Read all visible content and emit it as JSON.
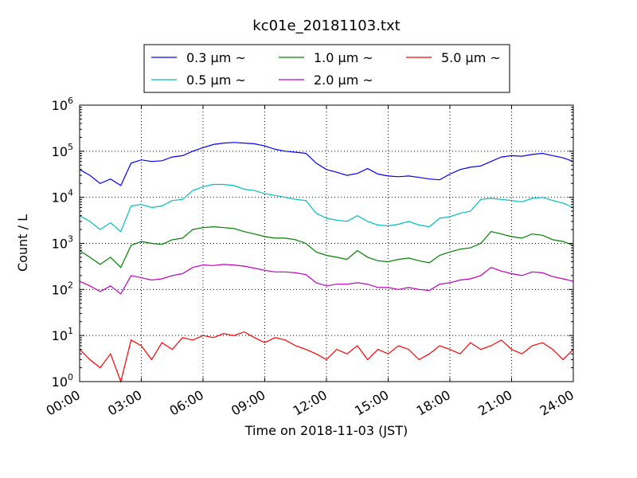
{
  "chart_data": {
    "type": "line",
    "title": "kc01e_20181103.txt",
    "xlabel": "Time on 2018-11-03 (JST)",
    "ylabel": "Count / L",
    "xlim": [
      0,
      24
    ],
    "y_scale": "log",
    "ylim": [
      1,
      1000000
    ],
    "grid": true,
    "legend_position": "top-center",
    "x_ticks": [
      "00:00",
      "03:00",
      "06:00",
      "09:00",
      "12:00",
      "15:00",
      "18:00",
      "21:00",
      "24:00"
    ],
    "y_ticks": [
      {
        "base": "10",
        "exp": "0"
      },
      {
        "base": "10",
        "exp": "1"
      },
      {
        "base": "10",
        "exp": "2"
      },
      {
        "base": "10",
        "exp": "3"
      },
      {
        "base": "10",
        "exp": "4"
      },
      {
        "base": "10",
        "exp": "5"
      },
      {
        "base": "10",
        "exp": "6"
      }
    ],
    "x_hours": [
      0,
      0.5,
      1,
      1.5,
      2,
      2.5,
      3,
      3.5,
      4,
      4.5,
      5,
      5.5,
      6,
      6.5,
      7,
      7.5,
      8,
      8.5,
      9,
      9.5,
      10,
      10.5,
      11,
      11.5,
      12,
      12.5,
      13,
      13.5,
      14,
      14.5,
      15,
      15.5,
      16,
      16.5,
      17,
      17.5,
      18,
      18.5,
      19,
      19.5,
      20,
      20.5,
      21,
      21.5,
      22,
      22.5,
      23,
      23.5,
      24
    ],
    "series": [
      {
        "name": "0.3 μm ~",
        "color": "#0000ff",
        "values": [
          40000,
          30000,
          20000,
          25000,
          18000,
          55000,
          65000,
          60000,
          62000,
          75000,
          80000,
          100000,
          120000,
          140000,
          150000,
          155000,
          150000,
          145000,
          130000,
          110000,
          100000,
          95000,
          90000,
          55000,
          40000,
          35000,
          30000,
          33000,
          42000,
          32000,
          29000,
          28000,
          29000,
          27000,
          25000,
          24000,
          32000,
          40000,
          45000,
          48000,
          60000,
          75000,
          80000,
          78000,
          85000,
          90000,
          80000,
          72000,
          60000
        ]
      },
      {
        "name": "0.5 μm ~",
        "color": "#00bfbf",
        "values": [
          4000,
          3000,
          2000,
          2800,
          1800,
          6500,
          7000,
          6000,
          6500,
          8500,
          9000,
          14000,
          17000,
          19000,
          19000,
          18000,
          15000,
          14000,
          12000,
          11000,
          10000,
          9000,
          8500,
          4500,
          3500,
          3200,
          3000,
          4000,
          3000,
          2500,
          2400,
          2600,
          3000,
          2500,
          2300,
          3500,
          3800,
          4500,
          5000,
          9000,
          9500,
          9000,
          8500,
          8000,
          9500,
          10000,
          8500,
          7500,
          6000
        ]
      },
      {
        "name": "1.0 μm ~",
        "color": "#008000",
        "values": [
          700,
          500,
          350,
          500,
          300,
          900,
          1100,
          1000,
          950,
          1200,
          1300,
          2000,
          2200,
          2300,
          2200,
          2100,
          1800,
          1600,
          1400,
          1300,
          1300,
          1200,
          1000,
          650,
          550,
          500,
          450,
          700,
          500,
          420,
          400,
          450,
          480,
          420,
          380,
          550,
          650,
          750,
          800,
          1000,
          1800,
          1600,
          1400,
          1300,
          1600,
          1500,
          1200,
          1100,
          900
        ]
      },
      {
        "name": "2.0 μm ~",
        "color": "#bf00bf",
        "values": [
          150,
          120,
          90,
          120,
          80,
          200,
          180,
          160,
          170,
          200,
          220,
          300,
          340,
          330,
          350,
          340,
          320,
          290,
          260,
          240,
          240,
          230,
          210,
          140,
          120,
          130,
          130,
          140,
          130,
          110,
          110,
          100,
          110,
          100,
          95,
          130,
          140,
          160,
          170,
          200,
          300,
          250,
          220,
          200,
          240,
          230,
          190,
          170,
          150
        ]
      },
      {
        "name": "5.0 μm ~",
        "color": "#ff0000",
        "values": [
          5,
          3,
          2,
          4,
          1,
          8,
          6,
          3,
          7,
          5,
          9,
          8,
          10,
          9,
          11,
          10,
          12,
          9,
          7,
          9,
          8,
          6,
          5,
          4,
          3,
          5,
          4,
          6,
          3,
          5,
          4,
          6,
          5,
          3,
          4,
          6,
          5,
          4,
          7,
          5,
          6,
          8,
          5,
          4,
          6,
          7,
          5,
          3,
          5
        ]
      }
    ]
  }
}
